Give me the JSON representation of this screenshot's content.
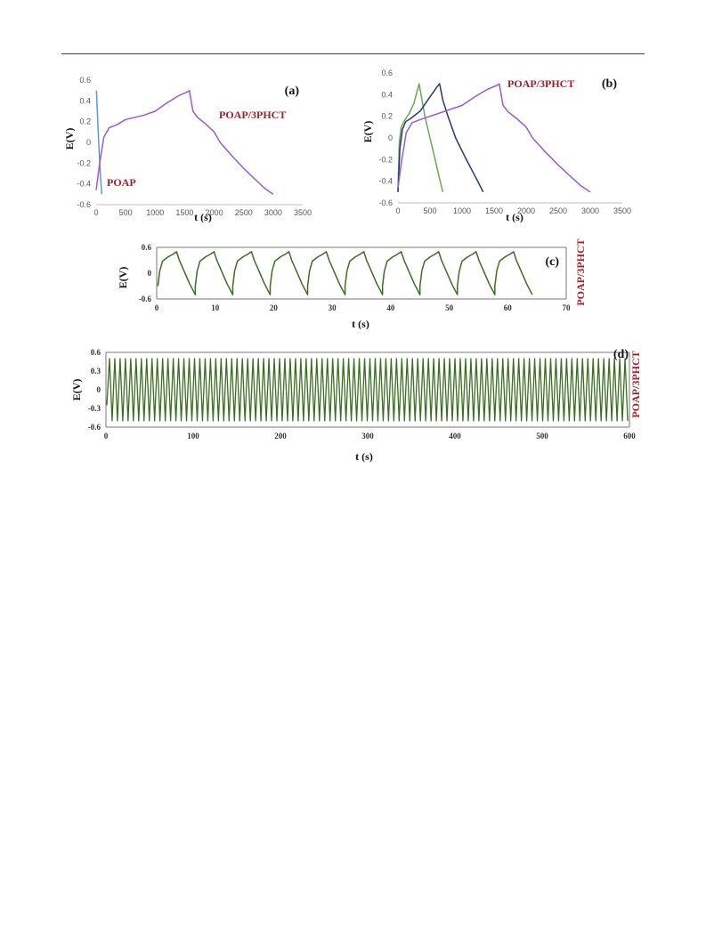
{
  "colors": {
    "annotation": "#a0202a",
    "poap": "#5b9bd5",
    "poap_3phct": "#9b59d0",
    "green": "#6aa84f",
    "navy": "#1f3a78",
    "dark_green": "#3b6e22"
  },
  "chart_data": [
    {
      "id": "a",
      "type": "line",
      "panel_label": "(a)",
      "xlabel": "t (s)",
      "ylabel": "E(V)",
      "xlim": [
        0,
        3500
      ],
      "ylim": [
        -0.6,
        0.6
      ],
      "x_ticks": [
        0,
        500,
        1000,
        1500,
        2000,
        2500,
        3000,
        3500
      ],
      "y_ticks": [
        -0.6,
        -0.4,
        -0.2,
        0,
        0.2,
        0.4,
        0.6
      ],
      "x_tick_labels": [
        "0",
        "500",
        "1000",
        "1500",
        "2000",
        "2500",
        "3000",
        "3500"
      ],
      "y_tick_labels": [
        "-0.6",
        "-0.4",
        "-0.2",
        "0",
        "0.2",
        "0.4",
        "0.6"
      ],
      "annotations": [
        {
          "text": "POAP/3PHCT",
          "color": "#a0202a"
        },
        {
          "text": "POAP",
          "color": "#a0202a"
        }
      ],
      "series": [
        {
          "name": "POAP",
          "color": "#5b9bd5",
          "kind": "discharge_only",
          "points": [
            [
              5,
              0.5
            ],
            [
              35,
              0.1
            ],
            [
              65,
              -0.25
            ],
            [
              95,
              -0.5
            ]
          ]
        },
        {
          "name": "POAP/3PHCT",
          "color": "#9b59d0",
          "kind": "gcd",
          "points": [
            [
              0,
              -0.46
            ],
            [
              60,
              -0.2
            ],
            [
              130,
              0.05
            ],
            [
              220,
              0.14
            ],
            [
              350,
              0.17
            ],
            [
              500,
              0.22
            ],
            [
              800,
              0.26
            ],
            [
              1000,
              0.3
            ],
            [
              1200,
              0.38
            ],
            [
              1400,
              0.45
            ],
            [
              1560,
              0.49
            ],
            [
              1580,
              0.5
            ],
            [
              1640,
              0.3
            ],
            [
              1720,
              0.24
            ],
            [
              1850,
              0.18
            ],
            [
              2000,
              0.1
            ],
            [
              2100,
              0.0
            ],
            [
              2300,
              -0.13
            ],
            [
              2500,
              -0.25
            ],
            [
              2700,
              -0.36
            ],
            [
              2850,
              -0.44
            ],
            [
              3000,
              -0.5
            ]
          ]
        }
      ]
    },
    {
      "id": "b",
      "type": "line",
      "panel_label": "(b)",
      "xlabel": "t (s)",
      "ylabel": "E(V)",
      "xlim": [
        0,
        3500
      ],
      "ylim": [
        -0.6,
        0.6
      ],
      "x_ticks": [
        0,
        500,
        1000,
        1500,
        2000,
        2500,
        3000,
        3500
      ],
      "y_ticks": [
        -0.6,
        -0.4,
        -0.2,
        0,
        0.2,
        0.4,
        0.6
      ],
      "x_tick_labels": [
        "0",
        "500",
        "1000",
        "1500",
        "2000",
        "2500",
        "3000",
        "3500"
      ],
      "y_tick_labels": [
        "-0.6",
        "-0.4",
        "-0.2",
        "0",
        "0.2",
        "0.4",
        "0.6"
      ],
      "annotations": [
        {
          "text": "POAP/3PHCT",
          "color": "#a0202a"
        }
      ],
      "series": [
        {
          "color": "#6aa84f",
          "points": [
            [
              0,
              -0.5
            ],
            [
              20,
              -0.05
            ],
            [
              50,
              0.1
            ],
            [
              100,
              0.16
            ],
            [
              170,
              0.22
            ],
            [
              250,
              0.32
            ],
            [
              330,
              0.5
            ],
            [
              360,
              0.4
            ],
            [
              420,
              0.2
            ],
            [
              500,
              0.0
            ],
            [
              580,
              -0.2
            ],
            [
              650,
              -0.38
            ],
            [
              700,
              -0.5
            ]
          ]
        },
        {
          "color": "#1f3a78",
          "points": [
            [
              0,
              -0.5
            ],
            [
              30,
              -0.1
            ],
            [
              70,
              0.08
            ],
            [
              120,
              0.15
            ],
            [
              200,
              0.18
            ],
            [
              350,
              0.25
            ],
            [
              500,
              0.38
            ],
            [
              620,
              0.48
            ],
            [
              650,
              0.5
            ],
            [
              700,
              0.35
            ],
            [
              780,
              0.2
            ],
            [
              900,
              0.0
            ],
            [
              1050,
              -0.18
            ],
            [
              1200,
              -0.35
            ],
            [
              1330,
              -0.5
            ]
          ]
        },
        {
          "name": "POAP/3PHCT",
          "color": "#9b59d0",
          "points": [
            [
              0,
              -0.46
            ],
            [
              60,
              -0.2
            ],
            [
              130,
              0.05
            ],
            [
              220,
              0.14
            ],
            [
              350,
              0.17
            ],
            [
              500,
              0.2
            ],
            [
              800,
              0.26
            ],
            [
              1000,
              0.3
            ],
            [
              1200,
              0.38
            ],
            [
              1400,
              0.45
            ],
            [
              1560,
              0.49
            ],
            [
              1580,
              0.5
            ],
            [
              1640,
              0.3
            ],
            [
              1720,
              0.24
            ],
            [
              1850,
              0.18
            ],
            [
              2000,
              0.1
            ],
            [
              2100,
              0.0
            ],
            [
              2300,
              -0.13
            ],
            [
              2500,
              -0.25
            ],
            [
              2700,
              -0.36
            ],
            [
              2850,
              -0.44
            ],
            [
              3000,
              -0.5
            ]
          ]
        }
      ]
    },
    {
      "id": "c",
      "type": "line",
      "panel_label": "(c)",
      "xlabel": "t (s)",
      "ylabel": "E(V)",
      "xlim": [
        0,
        70
      ],
      "ylim": [
        -0.6,
        0.6
      ],
      "x_ticks": [
        0,
        10,
        20,
        30,
        40,
        50,
        60,
        70
      ],
      "y_ticks": [
        -0.6,
        0,
        0.6
      ],
      "x_tick_labels": [
        "0",
        "10",
        "20",
        "30",
        "40",
        "50",
        "60",
        "70"
      ],
      "y_tick_labels": [
        "-0.6",
        "0",
        "0.6"
      ],
      "side_label": "POAP/3PHCT",
      "series": [
        {
          "color": "#3b6e22",
          "kind": "repeating_cycle",
          "cycles": 10,
          "period": 6.4,
          "t_start": 0.2,
          "charge_fraction": 0.5,
          "charge_shape": [
            [
              0,
              -0.3
            ],
            [
              0.1,
              0.05
            ],
            [
              0.25,
              0.28
            ],
            [
              0.55,
              0.38
            ],
            [
              0.8,
              0.44
            ],
            [
              1.0,
              0.5
            ]
          ],
          "discharge_shape": [
            [
              0,
              0.5
            ],
            [
              0.15,
              0.3
            ],
            [
              0.4,
              0.05
            ],
            [
              0.7,
              -0.25
            ],
            [
              1.0,
              -0.5
            ]
          ]
        }
      ]
    },
    {
      "id": "d",
      "type": "line",
      "panel_label": "(d)",
      "xlabel": "t (s)",
      "ylabel": "E(V)",
      "xlim": [
        0,
        600
      ],
      "ylim": [
        -0.6,
        0.6
      ],
      "x_ticks": [
        0,
        100,
        200,
        300,
        400,
        500,
        600
      ],
      "y_ticks": [
        -0.6,
        -0.3,
        0,
        0.3,
        0.6
      ],
      "x_tick_labels": [
        "0",
        "100",
        "200",
        "300",
        "400",
        "500",
        "600"
      ],
      "y_tick_labels": [
        "-0.6",
        "-0.3",
        "0",
        "0.3",
        "0.6"
      ],
      "side_label": "POAP/3PHCT",
      "series": [
        {
          "color": "#3b6e22",
          "kind": "triangle_wave",
          "cycles": 98,
          "t_start": 1,
          "t_end": 598,
          "vmin": -0.5,
          "vmax": 0.5,
          "start": -0.25
        }
      ]
    }
  ]
}
